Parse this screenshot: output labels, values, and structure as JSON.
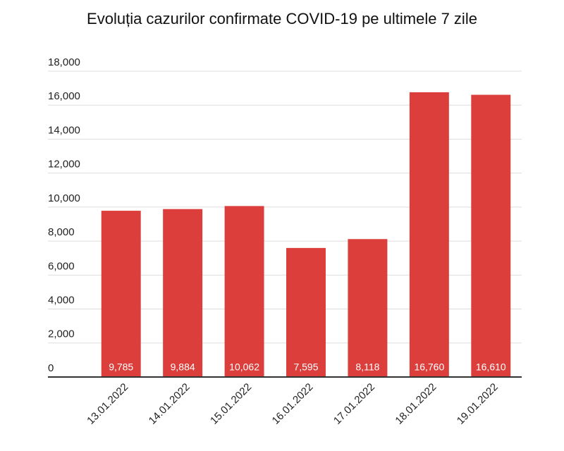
{
  "chart_data": {
    "type": "bar",
    "title": "Evoluția cazurilor confirmate COVID-19 pe ultimele 7 zile",
    "categories": [
      "13.01.2022",
      "14.01.2022",
      "15.01.2022",
      "16.01.2022",
      "17.01.2022",
      "18.01.2022",
      "19.01.2022"
    ],
    "values": [
      9785,
      9884,
      10062,
      7595,
      8118,
      16760,
      16610
    ],
    "value_labels": [
      "9,785",
      "9,884",
      "10,062",
      "7,595",
      "8,118",
      "16,760",
      "16,610"
    ],
    "color": "#dc3f3b",
    "ylim": [
      0,
      18000
    ],
    "yticks": [
      0,
      {
        "value": 2000,
        "label": "2,000"
      },
      {
        "value": 4000,
        "label": "4,000"
      },
      {
        "value": 6000,
        "label": "6,000"
      },
      {
        "value": 8000,
        "label": "8,000"
      },
      {
        "value": 10000,
        "label": "10,000"
      },
      {
        "value": 12000,
        "label": "12,000"
      },
      {
        "value": 14000,
        "label": "14,000"
      },
      {
        "value": 16000,
        "label": "16,000"
      },
      {
        "value": 18000,
        "label": "18,000"
      }
    ],
    "grid": true
  }
}
